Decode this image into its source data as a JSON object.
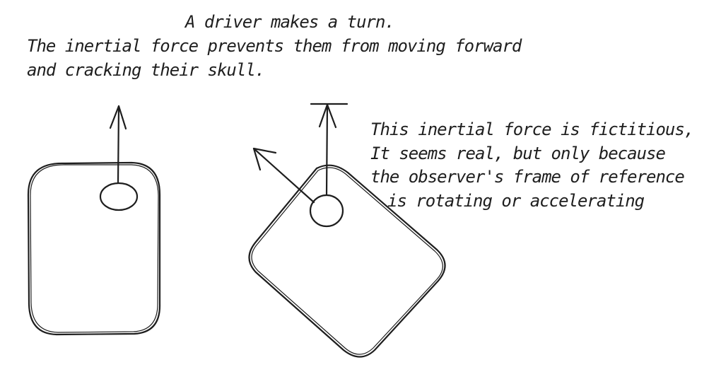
{
  "caption": {
    "line1": "A driver makes a turn.",
    "line2": "The inertial force prevents them from moving forward",
    "line3": "and cracking their skull."
  },
  "note": {
    "line1": "This inertial force is fictitious,",
    "line2": "It seems real, but only because",
    "line3": "the observer's frame of reference",
    "line4": "is rotating or accelerating"
  },
  "colors": {
    "ink": "#1e1e1e",
    "background": "#ffffff"
  }
}
